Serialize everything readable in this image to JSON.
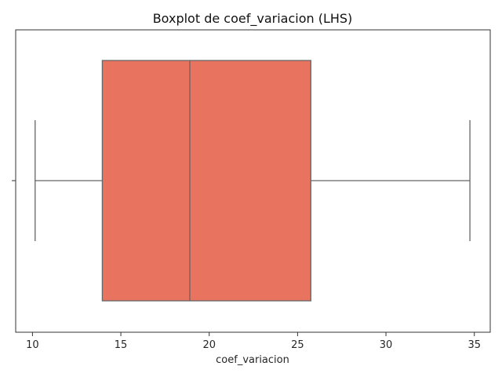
{
  "chart_data": {
    "type": "boxplot",
    "orientation": "horizontal",
    "title": "Boxplot de coef_variacion (LHS)",
    "xlabel": "coef_variacion",
    "ylabel": "",
    "xlim": [
      9.05,
      35.9
    ],
    "xticks": [
      10,
      15,
      20,
      25,
      30,
      35
    ],
    "grid": false,
    "box": {
      "whisker_low": 10.15,
      "q1": 13.95,
      "median": 18.9,
      "q3": 25.75,
      "whisker_high": 34.75
    },
    "colors": {
      "box_fill": "#e8735f",
      "box_edge": "#666666",
      "axes": "#333333"
    }
  }
}
